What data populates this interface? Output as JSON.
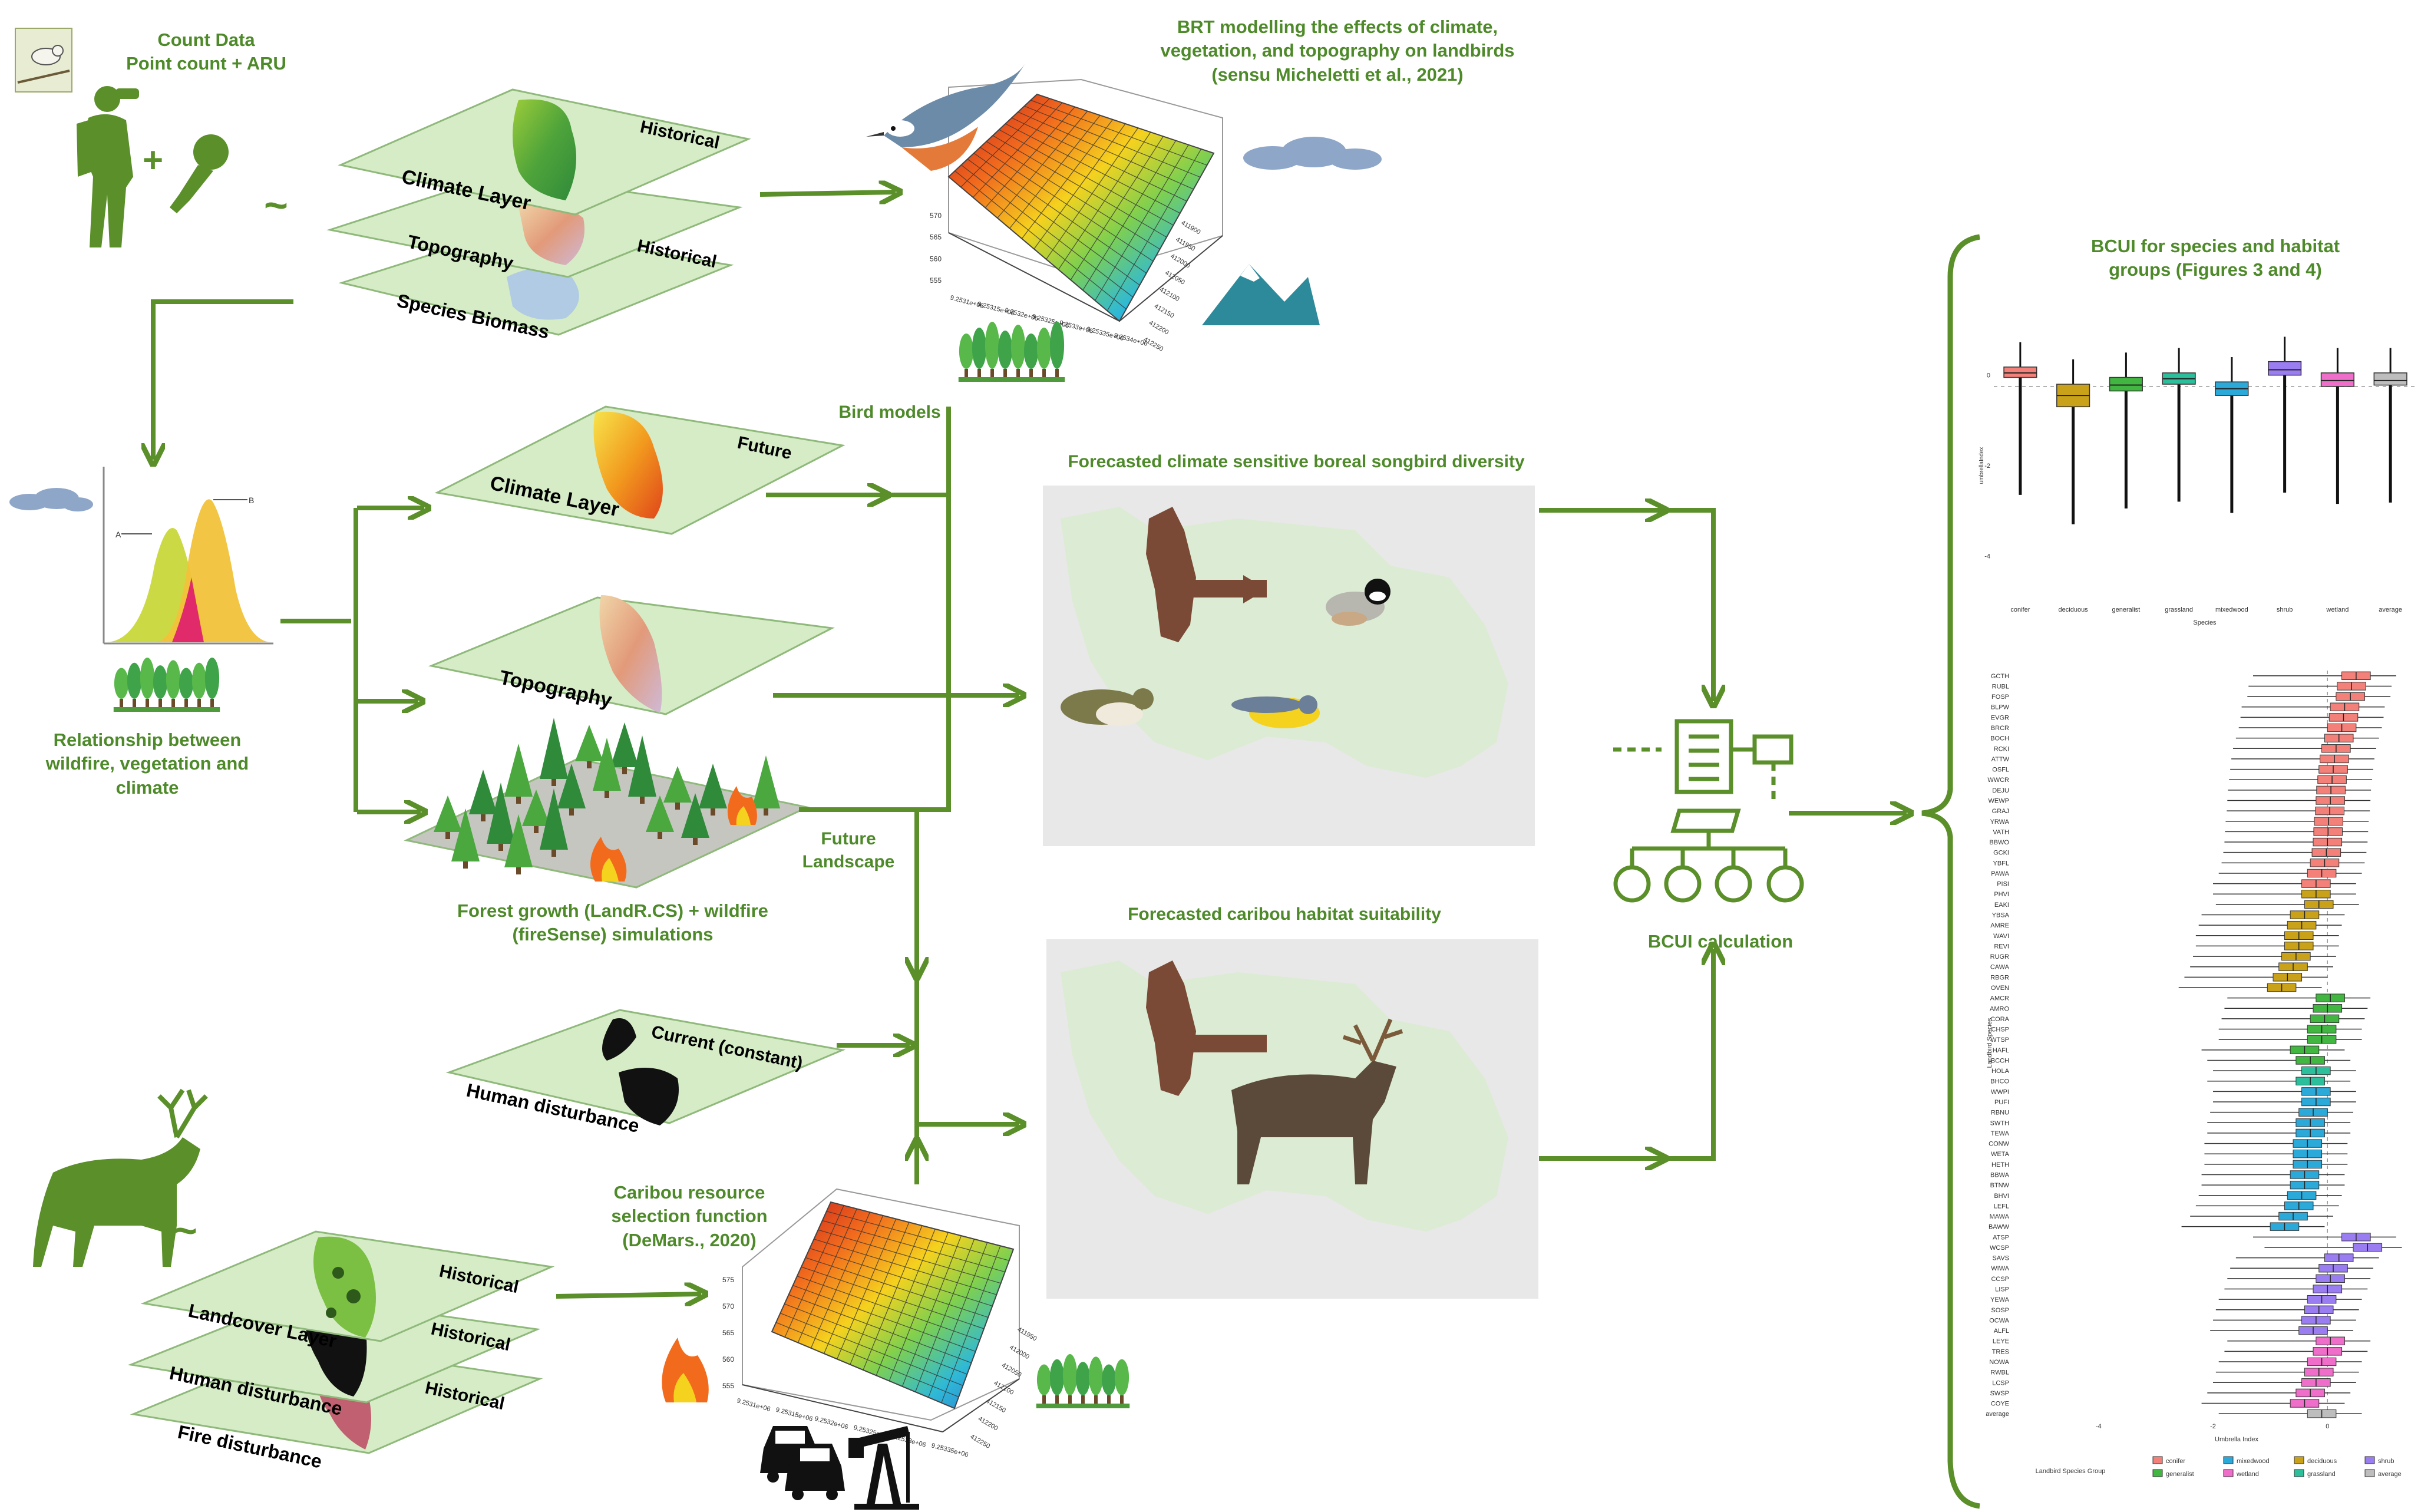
{
  "colors": {
    "arrow_green": "#5a8f29",
    "label_green": "#4e8a2a",
    "layer_fill": "#d5ecc6",
    "map_land": "#dcebd3",
    "map_bg": "#e8e8e8",
    "shaded_region": "#7a4a36"
  },
  "icons": [
    "bird-photo-icon",
    "birdwatcher-icon",
    "microphone-icon",
    "caribou-icon",
    "tree-row-icon",
    "cloud-icon",
    "mountain-icon",
    "fire-icon",
    "car-icon",
    "oil-pump-icon",
    "bcui-computer-icon",
    "bell-curve-icon"
  ],
  "labels": {
    "count_data": "Count Data",
    "point_count": "Point count + ARU",
    "plus": "+",
    "tilde": "~",
    "tilde2": "~",
    "brt_line1": "BRT modelling the effects of climate,",
    "brt_line2": "vegetation,  and topography on landbirds",
    "brt_line3": "(sensu Micheletti et al., 2021)",
    "relationship_line1": "Relationship between",
    "relationship_line2": "wildfire, vegetation and",
    "relationship_line3": "climate",
    "bird_models": "Bird models",
    "future_line1": "Future",
    "future_line2": "Landscape",
    "forest_line1": "Forest growth (LandR.CS) + wildfire",
    "forest_line2": "(fireSense) simulations",
    "forecast_songbird": "Forecasted climate sensitive boreal songbird diversity",
    "forecast_caribou": "Forecasted caribou habitat suitability",
    "bcui_calc": "BCUI calculation",
    "caribou_line1": "Caribou resource",
    "caribou_line2": "selection function",
    "caribou_line3": "(DeMars., 2020)",
    "bcui_title_line1": "BCUI for species and habitat",
    "bcui_title_line2": "groups (Figures 3 and 4)"
  },
  "layers": {
    "climate_historical": {
      "name": "Climate Layer",
      "tag": "Historical"
    },
    "topography_historical": {
      "name": "Topography",
      "tag": "Historical"
    },
    "species_biomass": {
      "name": "Species Biomass"
    },
    "climate_future": {
      "name": "Climate Layer",
      "tag": "Future"
    },
    "topography_future": {
      "name": "Topography"
    },
    "human_current": {
      "name": "Human disturbance",
      "tag": "Current (constant)"
    },
    "landcover": {
      "name": "Landcover Layer",
      "tag": "Historical"
    },
    "human_hist": {
      "name": "Human disturbance",
      "tag": "Historical"
    },
    "fire_hist": {
      "name": "Fire disturbance",
      "tag": "Historical"
    }
  },
  "surface_plots": {
    "brt": {
      "z_ticks": [
        "570",
        "565",
        "560",
        "555"
      ],
      "x_ticks": [
        "9.2531e+06",
        "9.25315e+06",
        "9.2532e+06",
        "9.25325e+06",
        "9.2533e+06",
        "9.25335e+06",
        "9.2534e+06"
      ],
      "y_ticks": [
        "411900",
        "411950",
        "412000",
        "412050",
        "412100",
        "412150",
        "412200",
        "412250"
      ]
    },
    "caribou": {
      "z_ticks": [
        "575",
        "570",
        "565",
        "560",
        "555"
      ],
      "x_ticks": [
        "9.2531e+06",
        "9.25315e+06",
        "9.2532e+06",
        "9.25325e+06",
        "9.2533e+06",
        "9.25335e+06"
      ],
      "y_ticks": [
        "411950",
        "412000",
        "412050",
        "412100",
        "412150",
        "412200",
        "412250"
      ]
    }
  },
  "bell_curve": {
    "label_a": "A",
    "label_b": "B"
  },
  "chart_data": [
    {
      "type": "box",
      "xlabel": "Species",
      "ylabel": "umbrellaIndex",
      "categories": [
        "conifer",
        "deciduous",
        "generalist",
        "grassland",
        "mixedwood",
        "shrub",
        "wetland",
        "average"
      ],
      "medians": [
        0.05,
        -0.45,
        -0.22,
        -0.08,
        -0.3,
        0.12,
        -0.12,
        -0.12
      ],
      "q1": [
        -0.05,
        -0.7,
        -0.35,
        -0.2,
        -0.45,
        0.0,
        -0.25,
        -0.22
      ],
      "q3": [
        0.18,
        -0.2,
        -0.05,
        0.05,
        -0.15,
        0.3,
        0.05,
        0.05
      ],
      "ylim": [
        -5,
        1
      ],
      "yticks": [
        0,
        -2,
        -4
      ],
      "colors": [
        "#f4807a",
        "#c9a21a",
        "#41b640",
        "#2bbf9c",
        "#2ba9d9",
        "#9b7df2",
        "#ef6ec9",
        "#bdbdbd"
      ]
    },
    {
      "type": "box",
      "orientation": "horizontal",
      "xlabel": "Umbrella Index",
      "ylabel": "Landbird Species",
      "xticks": [
        -4,
        -2,
        0
      ],
      "legend_title": "Landbird Species Group",
      "legend": [
        "conifer",
        "generalist",
        "mixedwood",
        "wetland",
        "deciduous",
        "grassland",
        "shrub",
        "average"
      ],
      "legend_colors": [
        "#f4807a",
        "#41b640",
        "#2ba9d9",
        "#ef6ec9",
        "#c9a21a",
        "#2bbf9c",
        "#9b7df2",
        "#bdbdbd"
      ],
      "species": [
        "GCTH",
        "RUBL",
        "FOSP",
        "BLPW",
        "EVGR",
        "BRCR",
        "BOCH",
        "RCKI",
        "ATTW",
        "OSFL",
        "WWCR",
        "DEJU",
        "WEWP",
        "GRAJ",
        "YRWA",
        "VATH",
        "BBWO",
        "GCKI",
        "YBFL",
        "PAWA",
        "PISI",
        "PHVI",
        "EAKI",
        "YBSA",
        "AMRE",
        "WAVI",
        "REVI",
        "RUGR",
        "CAWA",
        "RBGR",
        "OVEN",
        "AMCR",
        "AMRO",
        "CORA",
        "CHSP",
        "WTSP",
        "HAFL",
        "BCCH",
        "HOLA",
        "BHCO",
        "WWPI",
        "PUFI",
        "RBNU",
        "SWTH",
        "TEWA",
        "CONW",
        "WETA",
        "HETH",
        "BBWA",
        "BTNW",
        "BHVI",
        "LEFL",
        "MAWA",
        "BAWW",
        "ATSP",
        "WCSP",
        "SAVS",
        "WIWA",
        "CCSP",
        "LISP",
        "YEWA",
        "SOSP",
        "OCWA",
        "ALFL",
        "LEYE",
        "TRES",
        "NOWA",
        "RWBL",
        "LCSP",
        "SWSP",
        "COYE",
        "average"
      ],
      "groups": [
        "conifer",
        "conifer",
        "conifer",
        "conifer",
        "conifer",
        "conifer",
        "conifer",
        "conifer",
        "conifer",
        "conifer",
        "conifer",
        "conifer",
        "conifer",
        "conifer",
        "conifer",
        "conifer",
        "conifer",
        "conifer",
        "conifer",
        "conifer",
        "conifer",
        "deciduous",
        "deciduous",
        "deciduous",
        "deciduous",
        "deciduous",
        "deciduous",
        "deciduous",
        "deciduous",
        "deciduous",
        "deciduous",
        "generalist",
        "generalist",
        "generalist",
        "generalist",
        "generalist",
        "generalist",
        "generalist",
        "grassland",
        "grassland",
        "mixedwood",
        "mixedwood",
        "mixedwood",
        "mixedwood",
        "mixedwood",
        "mixedwood",
        "mixedwood",
        "mixedwood",
        "mixedwood",
        "mixedwood",
        "mixedwood",
        "mixedwood",
        "mixedwood",
        "mixedwood",
        "shrub",
        "shrub",
        "shrub",
        "shrub",
        "shrub",
        "shrub",
        "shrub",
        "shrub",
        "shrub",
        "shrub",
        "wetland",
        "wetland",
        "wetland",
        "wetland",
        "wetland",
        "wetland",
        "wetland",
        "average"
      ],
      "medians": [
        0.5,
        0.42,
        0.4,
        0.3,
        0.28,
        0.25,
        0.2,
        0.15,
        0.12,
        0.1,
        0.08,
        0.06,
        0.05,
        0.04,
        0.02,
        0.01,
        0.0,
        -0.02,
        -0.05,
        -0.1,
        -0.2,
        -0.2,
        -0.15,
        -0.4,
        -0.45,
        -0.5,
        -0.5,
        -0.55,
        -0.6,
        -0.7,
        -0.8,
        0.05,
        0.0,
        -0.05,
        -0.1,
        -0.1,
        -0.4,
        -0.3,
        -0.2,
        -0.3,
        -0.2,
        -0.2,
        -0.25,
        -0.3,
        -0.3,
        -0.35,
        -0.35,
        -0.35,
        -0.4,
        -0.4,
        -0.45,
        -0.5,
        -0.6,
        -0.75,
        0.5,
        0.7,
        0.2,
        0.1,
        0.05,
        0.0,
        -0.1,
        -0.15,
        -0.2,
        -0.25,
        0.05,
        0.0,
        -0.1,
        -0.15,
        -0.2,
        -0.3,
        -0.4,
        -0.1
      ],
      "xlim": [
        -5.5,
        1.5
      ]
    }
  ]
}
